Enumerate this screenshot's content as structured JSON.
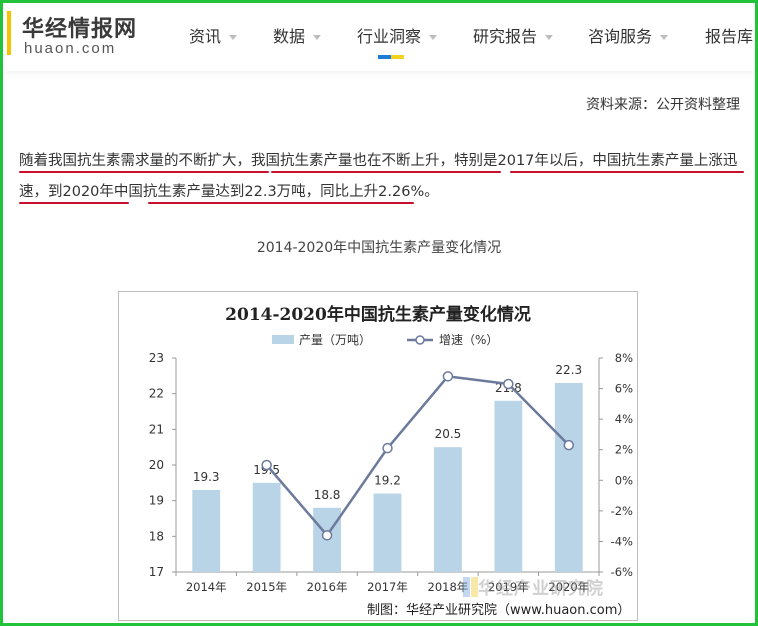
{
  "site": {
    "name_cn": "华经情报网",
    "name_en": "huaon.com"
  },
  "nav": {
    "items": [
      {
        "label": "资讯",
        "dropdown": true
      },
      {
        "label": "数据",
        "dropdown": true
      },
      {
        "label": "行业洞察",
        "dropdown": true,
        "active": true
      },
      {
        "label": "研究报告",
        "dropdown": true
      },
      {
        "label": "咨询服务",
        "dropdown": true
      },
      {
        "label": "报告库",
        "dropdown": false
      }
    ]
  },
  "article": {
    "source_top": "资料来源：公开资料整理",
    "paragraph": "随着我国抗生素需求量的不断扩大，我国抗生素产量也在不断上升，特别是2017年以后，中国抗生素产量上涨迅速，到2020年中国抗生素产量达到22.3万吨，同比上升2.26%。",
    "figure_caption": "2014-2020年中国抗生素产量变化情况",
    "watermark": "华经产业研究院",
    "credit": "制图：华经产业研究院（www.huaon.com）"
  },
  "colors": {
    "bar": "#b8d4e6",
    "line": "#6c7a9c",
    "underline": "#c8102e",
    "frame": "#22c33a",
    "nav_accent_blue": "#1e7bd8",
    "nav_accent_yellow": "#f2d21c"
  },
  "chart_data": {
    "type": "bar",
    "title": "2014-2020年中国抗生素产量变化情况",
    "categories": [
      "2014年",
      "2015年",
      "2016年",
      "2017年",
      "2018年",
      "2019年",
      "2020年"
    ],
    "series": [
      {
        "name": "产量（万吨）",
        "type": "bar",
        "axis": "left",
        "values": [
          19.3,
          19.5,
          18.8,
          19.2,
          20.5,
          21.8,
          22.3
        ]
      },
      {
        "name": "增速（%）",
        "type": "line",
        "axis": "right",
        "values": [
          null,
          1.0,
          -3.6,
          2.1,
          6.8,
          6.3,
          2.3
        ]
      }
    ],
    "left_axis": {
      "min": 17,
      "max": 23,
      "ticks": [
        "17",
        "18",
        "19",
        "20",
        "21",
        "22",
        "23"
      ]
    },
    "right_axis": {
      "min": -6,
      "max": 8,
      "ticks": [
        "-6%",
        "-4%",
        "-2%",
        "0%",
        "2%",
        "4%",
        "6%",
        "8%"
      ]
    },
    "legend": "top",
    "grid": false
  }
}
